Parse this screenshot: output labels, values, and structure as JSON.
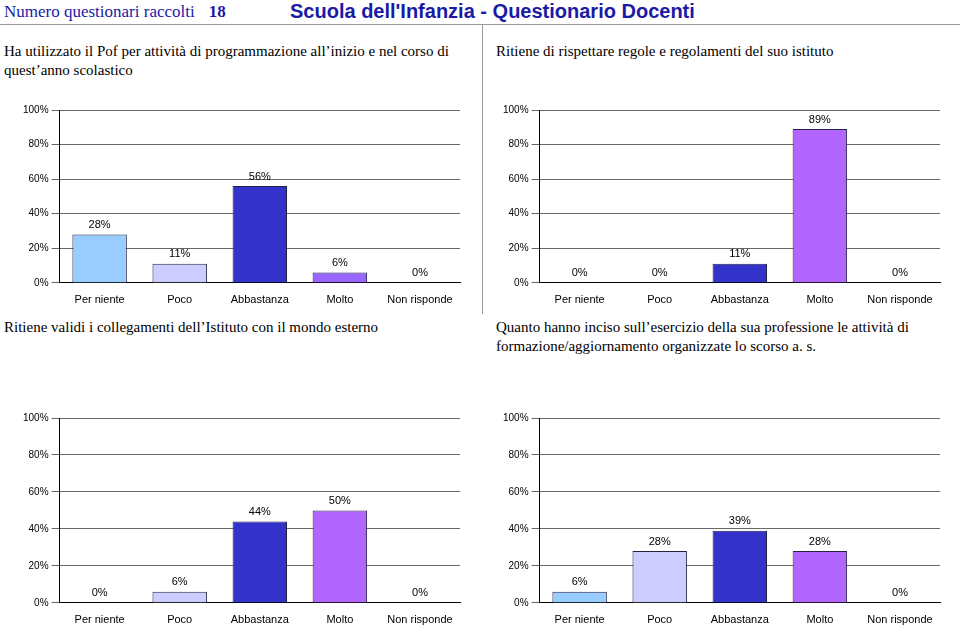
{
  "header": {
    "count_label": "Numero questionari raccolti",
    "count": 18,
    "title": "Scuola dell'Infanzia -  Questionario Docenti"
  },
  "chart_data": [
    {
      "type": "bar",
      "title": "Ha utilizzato il Pof per attività di programmazione all’inizio e nel corso di quest’anno scolastico",
      "categories": [
        "Per niente",
        "Poco",
        "Abbastanza",
        "Molto",
        "Non risponde"
      ],
      "values": [
        28,
        11,
        56,
        6,
        0
      ],
      "value_labels": [
        "28%",
        "11%",
        "56%",
        "6%",
        "0%"
      ],
      "colors": [
        "#99ccff",
        "#ccccff",
        "#3333cc",
        "#9966ff",
        "#bbbbdd"
      ],
      "ylim": [
        0,
        100
      ],
      "yticks": [
        {
          "value": 0,
          "label": "0%"
        },
        {
          "value": 20,
          "label": "20%"
        },
        {
          "value": 40,
          "label": "40%"
        },
        {
          "value": 60,
          "label": "60%"
        },
        {
          "value": 80,
          "label": "80%"
        },
        {
          "value": 100,
          "label": "100%"
        }
      ],
      "grid": true,
      "data_labels": true
    },
    {
      "type": "bar",
      "title": "Ritiene di rispettare regole e regolamenti del suo istituto",
      "categories": [
        "Per niente",
        "Poco",
        "Abbastanza",
        "Molto",
        "Non risponde"
      ],
      "values": [
        0,
        0,
        11,
        89,
        0
      ],
      "value_labels": [
        "0%",
        "0%",
        "11%",
        "89%",
        "0%"
      ],
      "colors": [
        "#99ccff",
        "#ccccff",
        "#3333cc",
        "#b266ff",
        "#bbbbdd"
      ],
      "ylim": [
        0,
        100
      ],
      "yticks": [
        {
          "value": 0,
          "label": "0%"
        },
        {
          "value": 20,
          "label": "20%"
        },
        {
          "value": 40,
          "label": "40%"
        },
        {
          "value": 60,
          "label": "60%"
        },
        {
          "value": 80,
          "label": "80%"
        },
        {
          "value": 100,
          "label": "100%"
        }
      ],
      "grid": true,
      "data_labels": true
    },
    {
      "type": "bar",
      "title": "Ritiene validi i collegamenti dell’Istituto con il mondo esterno",
      "categories": [
        "Per niente",
        "Poco",
        "Abbastanza",
        "Molto",
        "Non risponde"
      ],
      "values": [
        0,
        6,
        44,
        50,
        0
      ],
      "value_labels": [
        "0%",
        "6%",
        "44%",
        "50%",
        "0%"
      ],
      "colors": [
        "#99ccff",
        "#ccccff",
        "#3333cc",
        "#b266ff",
        "#bbbbdd"
      ],
      "ylim": [
        0,
        100
      ],
      "yticks": [
        {
          "value": 0,
          "label": "0%"
        },
        {
          "value": 20,
          "label": "20%"
        },
        {
          "value": 40,
          "label": "40%"
        },
        {
          "value": 60,
          "label": "60%"
        },
        {
          "value": 80,
          "label": "80%"
        },
        {
          "value": 100,
          "label": "100%"
        }
      ],
      "grid": true,
      "data_labels": true
    },
    {
      "type": "bar",
      "title": "Quanto hanno inciso sull’esercizio della sua professione le attività di formazione/aggiornamento organizzate lo scorso a. s.",
      "categories": [
        "Per niente",
        "Poco",
        "Abbastanza",
        "Molto",
        "Non risponde"
      ],
      "values": [
        6,
        28,
        39,
        28,
        0
      ],
      "value_labels": [
        "6%",
        "28%",
        "39%",
        "28%",
        "0%"
      ],
      "colors": [
        "#99ccff",
        "#ccccff",
        "#3333cc",
        "#b266ff",
        "#bbbbdd"
      ],
      "ylim": [
        0,
        100
      ],
      "yticks": [
        {
          "value": 0,
          "label": "0%"
        },
        {
          "value": 20,
          "label": "20%"
        },
        {
          "value": 40,
          "label": "40%"
        },
        {
          "value": 60,
          "label": "60%"
        },
        {
          "value": 80,
          "label": "80%"
        },
        {
          "value": 100,
          "label": "100%"
        }
      ],
      "grid": true,
      "data_labels": true
    }
  ]
}
